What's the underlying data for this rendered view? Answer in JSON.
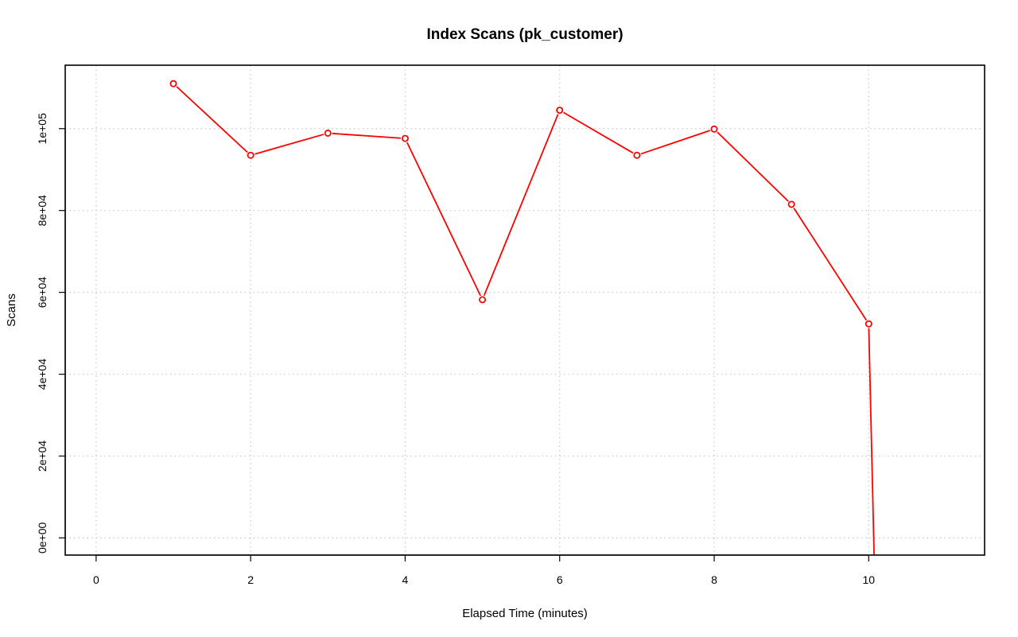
{
  "chart_data": {
    "type": "line",
    "title": "Index Scans (pk_customer)",
    "xlabel": "Elapsed Time (minutes)",
    "ylabel": "Scans",
    "xlim": [
      -0.4,
      11.5
    ],
    "ylim": [
      -4200,
      115500
    ],
    "x_ticks": [
      0,
      2,
      4,
      6,
      8,
      10
    ],
    "x_tick_labels": [
      "0",
      "2",
      "4",
      "6",
      "8",
      "10"
    ],
    "y_ticks": [
      0,
      20000,
      40000,
      60000,
      80000,
      100000
    ],
    "y_tick_labels": [
      "0e+00",
      "2e+04",
      "4e+04",
      "6e+04",
      "8e+04",
      "1e+05"
    ],
    "grid": true,
    "series": [
      {
        "color": "#ff0000",
        "x": [
          1,
          2,
          3,
          4,
          5,
          6,
          7,
          8,
          9,
          10
        ],
        "y": [
          111000,
          93500,
          98900,
          97600,
          58200,
          104500,
          93500,
          99900,
          81500,
          52300
        ],
        "marker": "open-circle"
      }
    ],
    "trailing_segment": {
      "x": [
        10,
        10.07
      ],
      "y": [
        52300,
        -4200
      ]
    }
  }
}
